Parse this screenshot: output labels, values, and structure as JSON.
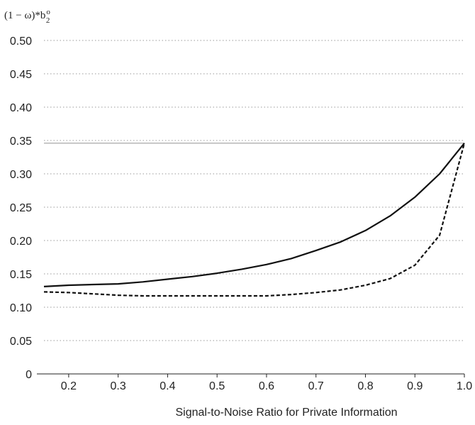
{
  "chart_data": {
    "type": "line",
    "title": "",
    "ylabel": "(1 − ω)*b",
    "ylabel_subscript": "2",
    "ylabel_superscript": "o",
    "xlabel": "Signal-to-Noise Ratio for Private Information",
    "xlim": [
      0.15,
      1.0
    ],
    "ylim": [
      0,
      0.5
    ],
    "xticks": [
      0.2,
      0.3,
      0.4,
      0.5,
      0.6,
      0.7,
      0.8,
      0.9,
      1.0
    ],
    "xtick_labels": [
      "0.2",
      "0.3",
      "0.4",
      "0.5",
      "0.6",
      "0.7",
      "0.8",
      "0.9",
      "1.0"
    ],
    "yticks": [
      0,
      0.05,
      0.1,
      0.15,
      0.2,
      0.25,
      0.3,
      0.35,
      0.4,
      0.45,
      0.5
    ],
    "ytick_labels": [
      "0",
      "0.05",
      "0.10",
      "0.15",
      "0.20",
      "0.25",
      "0.30",
      "0.35",
      "0.40",
      "0.45",
      "0.50"
    ],
    "grid": "horizontal-dotted",
    "reference_line": 0.346,
    "series": [
      {
        "style": "solid",
        "x": [
          0.15,
          0.2,
          0.25,
          0.3,
          0.35,
          0.4,
          0.45,
          0.5,
          0.55,
          0.6,
          0.65,
          0.7,
          0.75,
          0.8,
          0.85,
          0.9,
          0.95,
          1.0
        ],
        "y": [
          0.131,
          0.133,
          0.134,
          0.135,
          0.138,
          0.142,
          0.146,
          0.151,
          0.157,
          0.164,
          0.173,
          0.185,
          0.198,
          0.215,
          0.237,
          0.265,
          0.3,
          0.346
        ]
      },
      {
        "style": "dashed",
        "x": [
          0.15,
          0.2,
          0.25,
          0.3,
          0.35,
          0.4,
          0.45,
          0.5,
          0.55,
          0.6,
          0.65,
          0.7,
          0.75,
          0.8,
          0.85,
          0.9,
          0.95,
          1.0
        ],
        "y": [
          0.123,
          0.122,
          0.12,
          0.118,
          0.117,
          0.117,
          0.117,
          0.117,
          0.117,
          0.117,
          0.119,
          0.122,
          0.126,
          0.133,
          0.143,
          0.163,
          0.208,
          0.346
        ]
      }
    ]
  }
}
